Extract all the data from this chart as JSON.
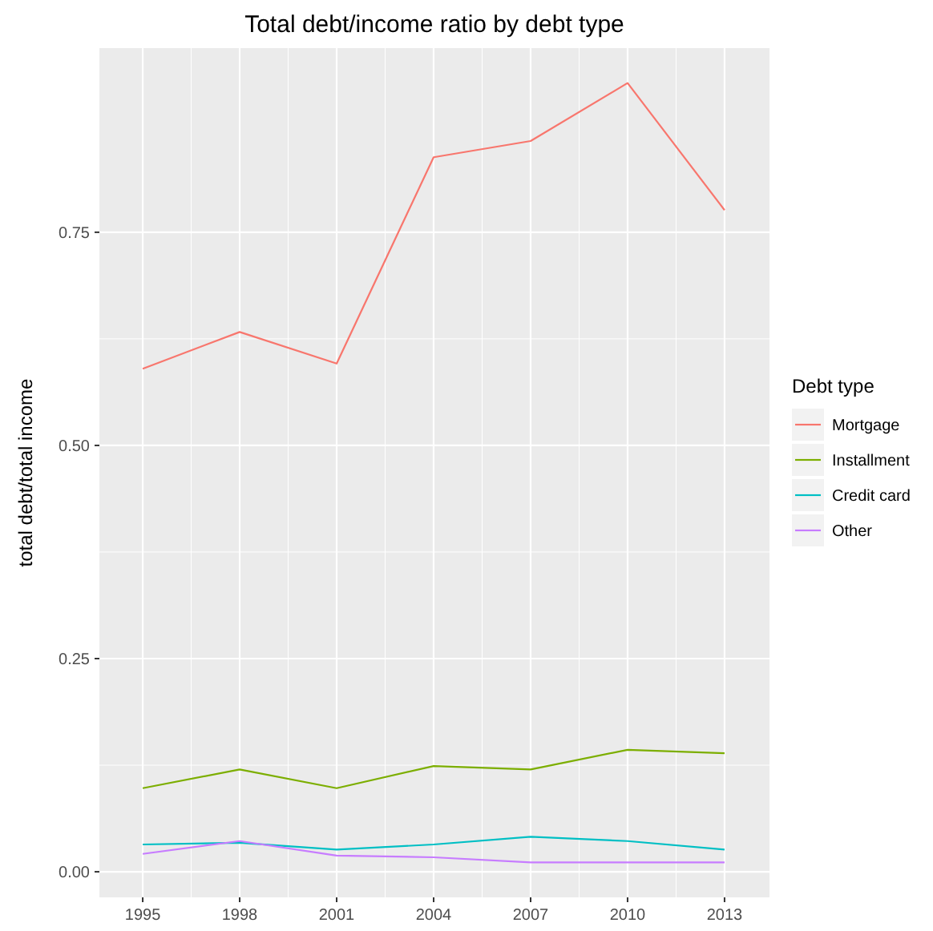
{
  "chart_data": {
    "type": "line",
    "title": "Total debt/income ratio by debt type",
    "ylabel": "total debt/total income",
    "legend_title": "Debt type",
    "x": [
      1995,
      1998,
      2001,
      2004,
      2007,
      2010,
      2013
    ],
    "xlim": [
      1993.66,
      2014.39
    ],
    "xticks": [
      1995,
      1998,
      2001,
      2004,
      2007,
      2010,
      2013
    ],
    "ylim": [
      -0.03,
      0.966
    ],
    "yticks": [
      {
        "value": 0,
        "label": "0.00"
      },
      {
        "value": 0.25,
        "label": "0.25"
      },
      {
        "value": 0.5,
        "label": "0.50"
      },
      {
        "value": 0.75,
        "label": "0.75"
      }
    ],
    "grid": true,
    "legend": "right",
    "marker": "none",
    "line_style": "solid",
    "series": [
      {
        "name": "Mortgage",
        "color": "#f8766d",
        "values": [
          0.59,
          0.633,
          0.596,
          0.838,
          0.857,
          0.925,
          0.776
        ]
      },
      {
        "name": "Installment",
        "color": "#7cae00",
        "values": [
          0.098,
          0.12,
          0.098,
          0.124,
          0.12,
          0.143,
          0.139
        ]
      },
      {
        "name": "Credit card",
        "color": "#00bfc4",
        "values": [
          0.032,
          0.034,
          0.026,
          0.032,
          0.041,
          0.036,
          0.026
        ]
      },
      {
        "name": "Other",
        "color": "#c77cff",
        "values": [
          0.021,
          0.036,
          0.019,
          0.017,
          0.011,
          0.011,
          0.011
        ]
      }
    ]
  }
}
